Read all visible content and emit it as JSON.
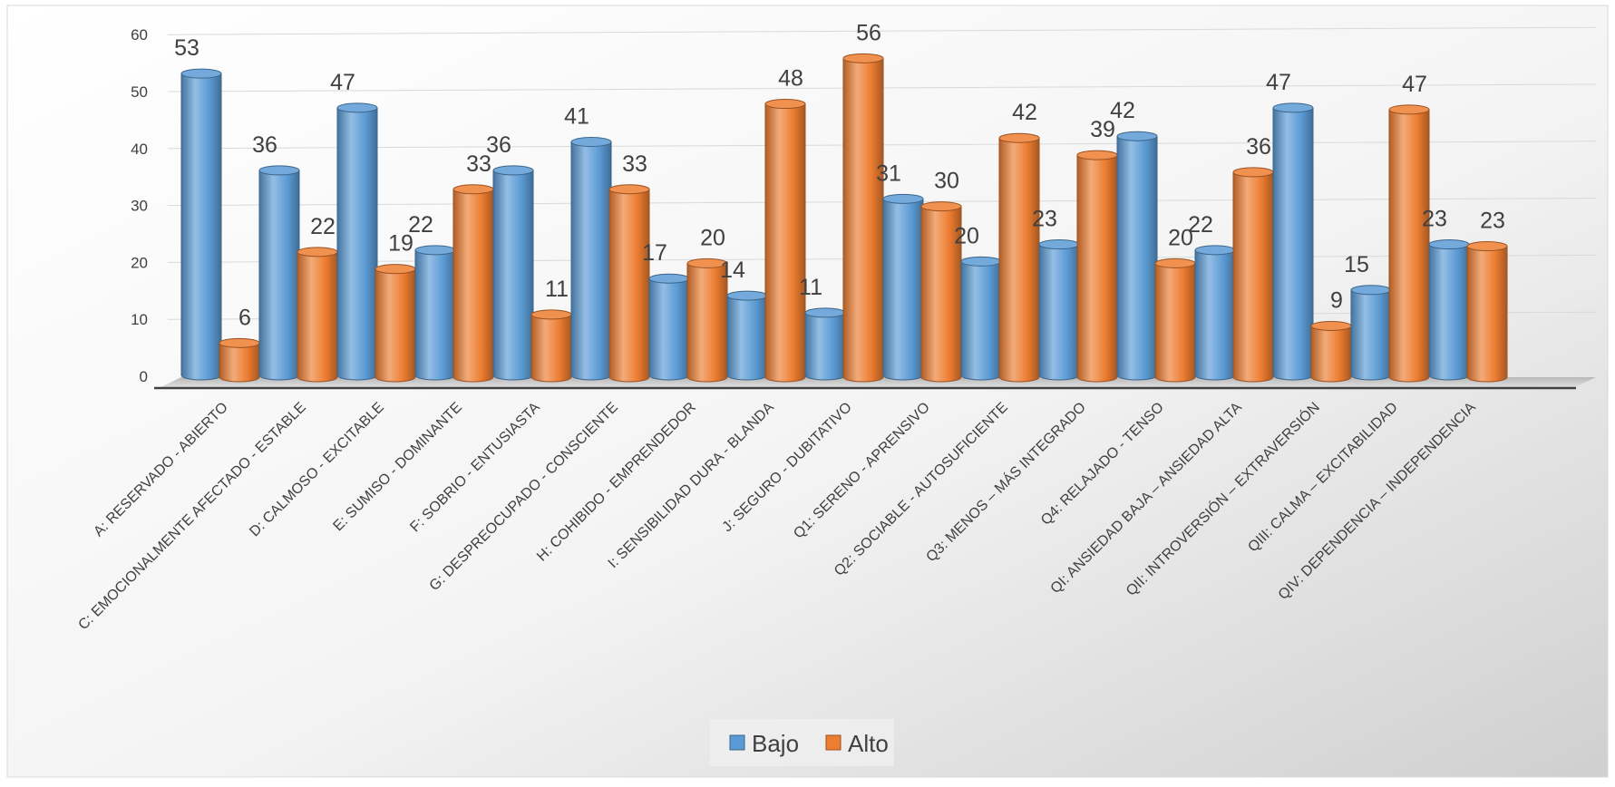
{
  "chart_data": {
    "type": "bar",
    "categories": [
      "A: RESERVADO - ABIERTO",
      "C: EMOCIONALMENTE AFECTADO -  ESTABLE",
      "D: CALMOSO - EXCITABLE",
      "E: SUMISO - DOMINANTE",
      "F: SOBRIO - ENTUSIASTA",
      "G: DESPREOCUPADO - CONSCIENTE",
      "H: COHIBIDO - EMPRENDEDOR",
      "I: SENSIBILIDAD DURA - BLANDA",
      "J: SEGURO - DUBITATIVO",
      "Q1: SERENO - APRENSIVO",
      "Q2: SOCIABLE - AUTOSUFICIENTE",
      "Q3: MENOS – MÁS INTEGRADO",
      "Q4: RELAJADO - TENSO",
      "QI: ANSIEDAD BAJA  – ANSIEDAD ALTA",
      "QII: INTROVERSIÓN – EXTRAVERSIÓN",
      "QIII: CALMA – EXCITABILIDAD",
      "QIV: DEPENDENCIA – INDEPENDENCIA"
    ],
    "series": [
      {
        "name": "Bajo",
        "color": "#5B9BD5",
        "values": [
          53,
          36,
          47,
          22,
          36,
          41,
          17,
          14,
          11,
          31,
          20,
          23,
          42,
          22,
          47,
          15,
          23
        ]
      },
      {
        "name": "Alto",
        "color": "#ED7D31",
        "values": [
          6,
          22,
          19,
          33,
          11,
          33,
          20,
          48,
          56,
          30,
          42,
          39,
          20,
          36,
          9,
          47,
          23
        ]
      }
    ],
    "ylim": [
      0,
      60
    ],
    "yticks": [
      0,
      10,
      20,
      30,
      40,
      50,
      60
    ],
    "grid": true,
    "legend": "bottom-center",
    "bar_style": "3d-cylinder"
  }
}
